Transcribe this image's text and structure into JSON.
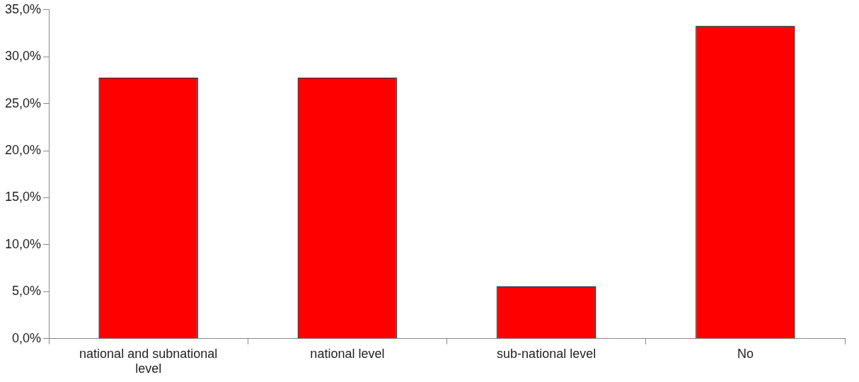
{
  "chart_data": {
    "type": "bar",
    "categories": [
      "national and subnational level",
      "national level",
      "sub-national level",
      "No"
    ],
    "values": [
      27.8,
      27.8,
      5.6,
      33.3
    ],
    "color": "#ff0000",
    "ylim": [
      0,
      35
    ],
    "yticks": [
      {
        "value": 0,
        "label": "0,0%"
      },
      {
        "value": 5,
        "label": "5,0%"
      },
      {
        "value": 10,
        "label": "10,0%"
      },
      {
        "value": 15,
        "label": "15,0%"
      },
      {
        "value": 20,
        "label": "20,0%"
      },
      {
        "value": 25,
        "label": "25,0%"
      },
      {
        "value": 30,
        "label": "30,0%"
      },
      {
        "value": 35,
        "label": "35,0%"
      }
    ],
    "grid": false,
    "legend": false
  }
}
